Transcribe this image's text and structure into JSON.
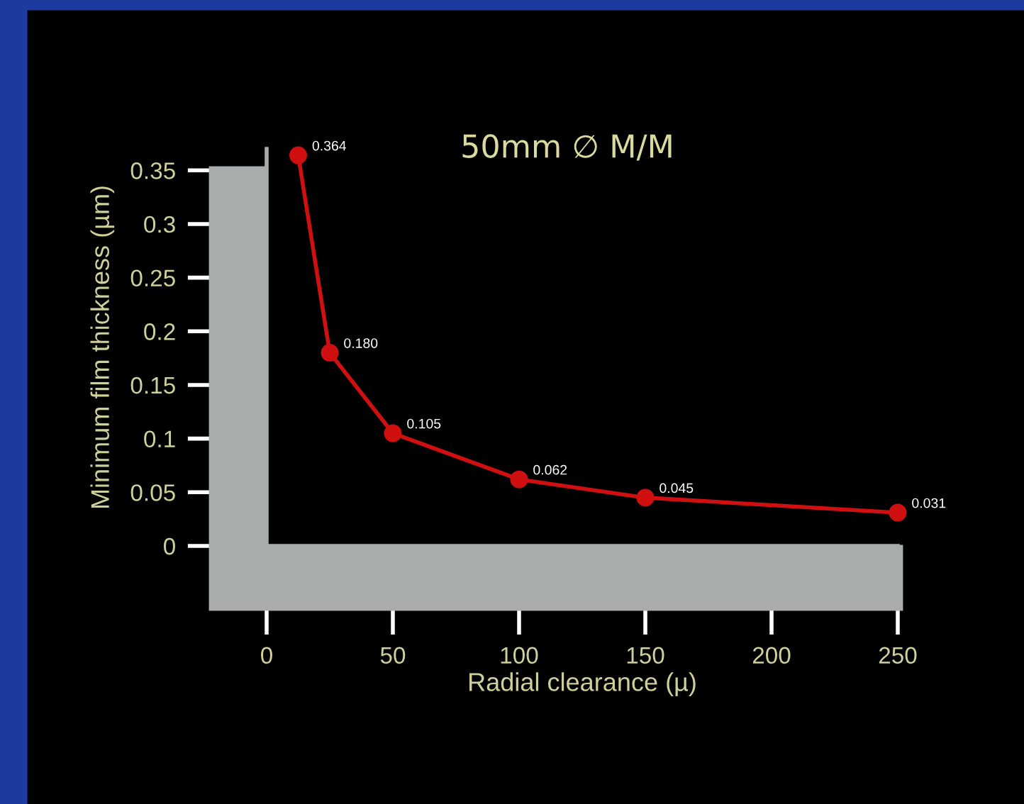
{
  "chart_data": {
    "type": "line",
    "title": "50mm ∅ M/M",
    "xlabel": "Radial clearance (µ)",
    "ylabel": "Minimum film thickness (µm)",
    "x": [
      12.5,
      25,
      50,
      100,
      150,
      250
    ],
    "series": [
      {
        "color": "#d01010",
        "values": [
          0.364,
          0.18,
          0.105,
          0.062,
          0.045,
          0.031
        ]
      }
    ],
    "value_labels": [
      "0.364",
      "0.180",
      "0.105",
      "0.062",
      "0.045",
      "0.031"
    ],
    "xlim": [
      0,
      250
    ],
    "ylim": [
      0,
      0.37
    ],
    "xticks": [
      0,
      50,
      100,
      150,
      200,
      250
    ],
    "yticks": [
      0,
      0.05,
      0.1,
      0.15,
      0.2,
      0.25,
      0.3,
      0.35
    ],
    "marker": "circle",
    "line_style": "solid",
    "grid": false,
    "legend": false
  }
}
